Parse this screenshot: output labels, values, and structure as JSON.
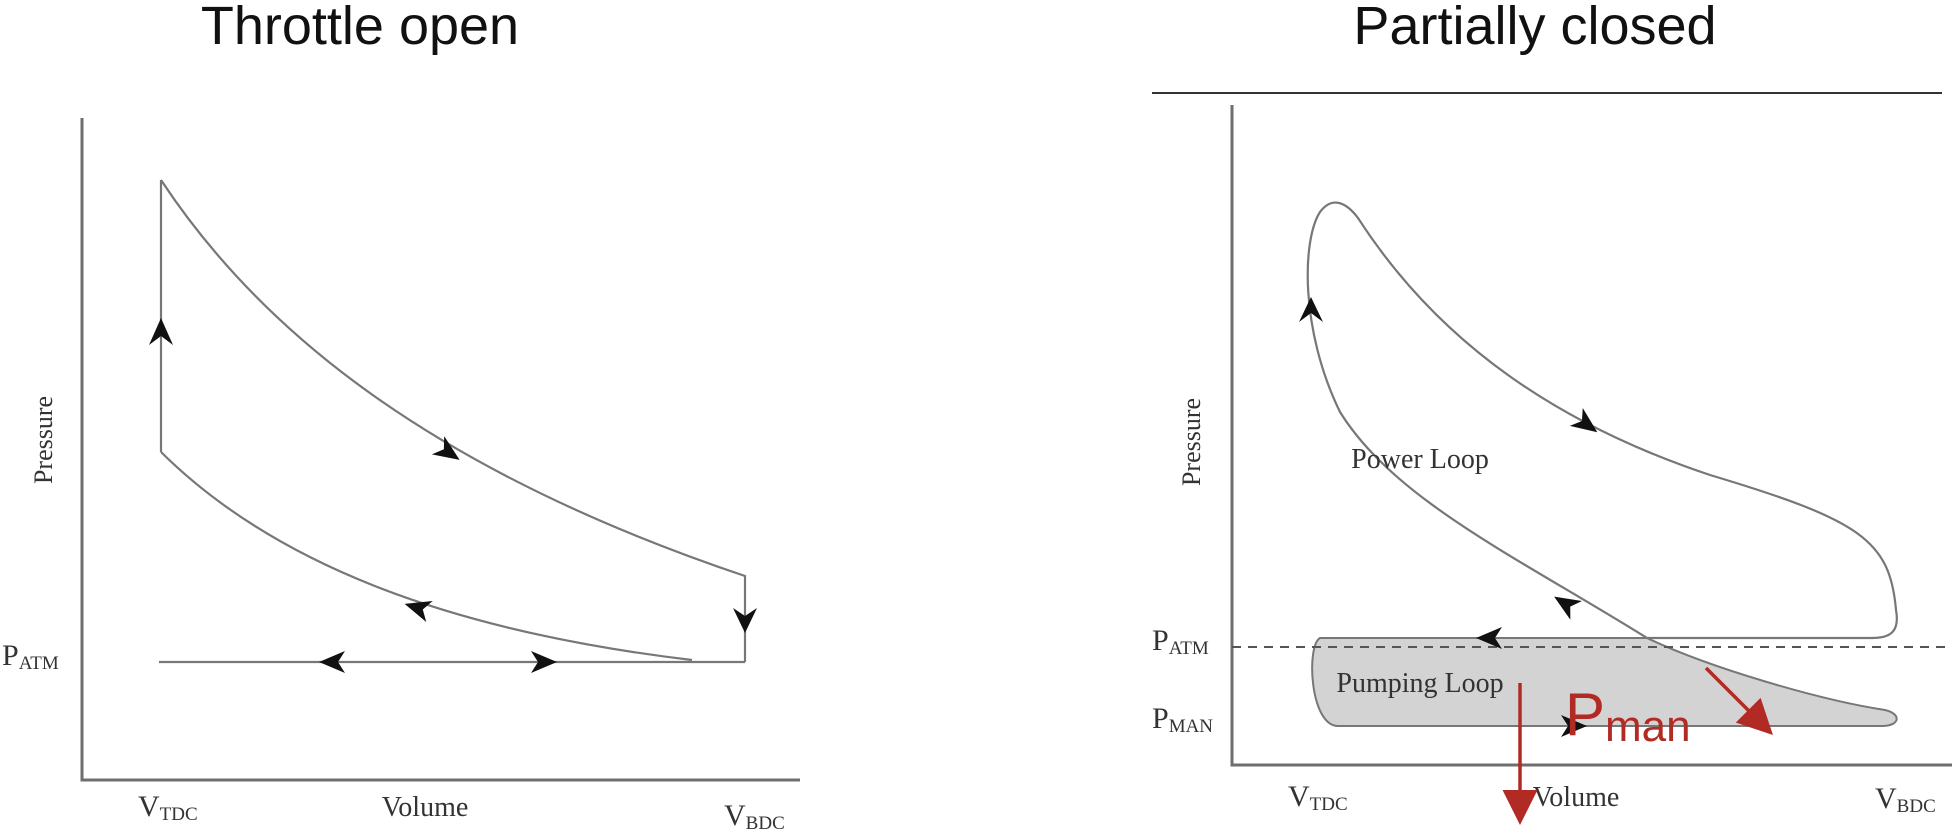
{
  "panels": [
    {
      "title": "Throttle open",
      "ylabel": "Pressure",
      "xlabel": "Volume",
      "labels": {
        "patm_main": "P",
        "patm_sub": "ATM",
        "vtdc_main": "V",
        "vtdc_sub": "TDC",
        "vbdc_main": "V",
        "vbdc_sub": "BDC"
      }
    },
    {
      "title": "Partially closed",
      "ylabel": "Pressure",
      "xlabel": "Volume",
      "labels": {
        "patm_main": "P",
        "patm_sub": "ATM",
        "pman_main": "P",
        "pman_sub": "MAN",
        "vtdc_main": "V",
        "vtdc_sub": "TDC",
        "vbdc_main": "V",
        "vbdc_sub": "BDC",
        "power_loop": "Power Loop",
        "pumping_loop": "Pumping Loop"
      },
      "annotation": {
        "main": "P",
        "sub": "man",
        "color": "#b22a24"
      },
      "pumping_fill": "#d3d3d3"
    }
  ]
}
